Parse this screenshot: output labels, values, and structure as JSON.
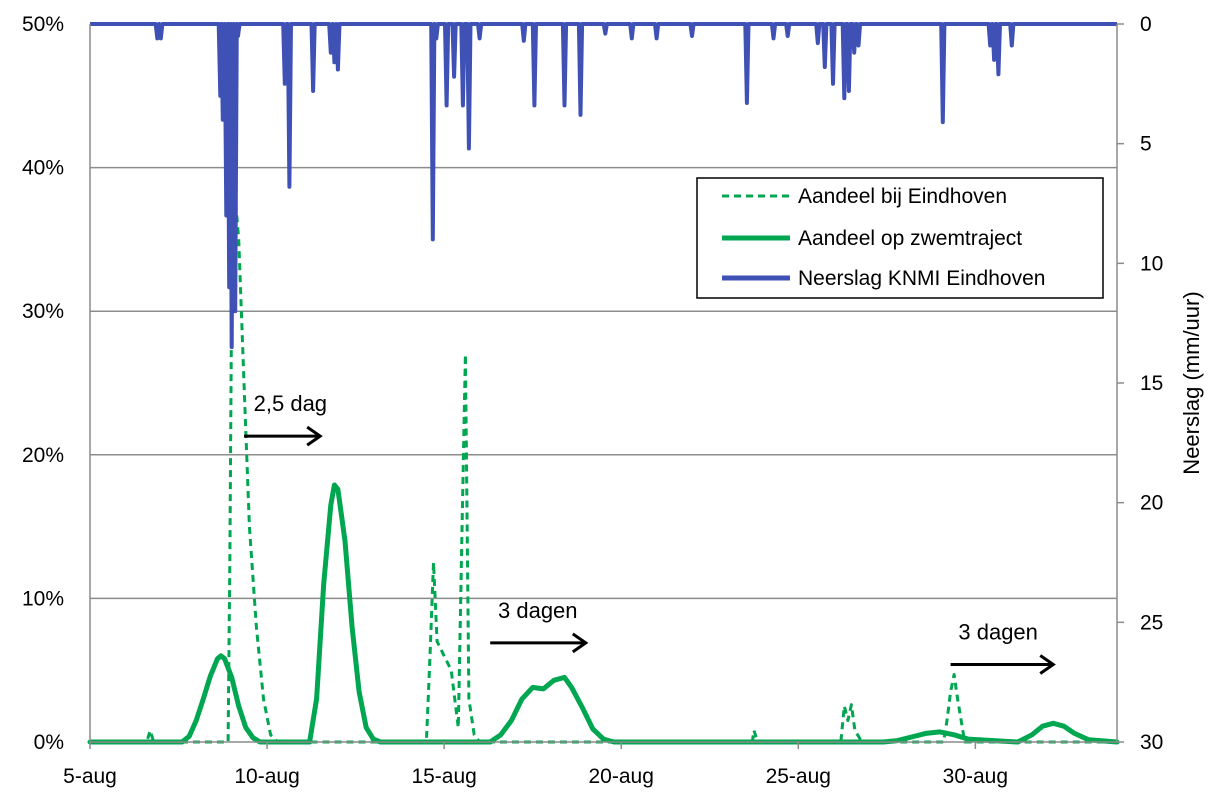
{
  "chart_data": {
    "type": "line",
    "x_axis": {
      "tick_labels": [
        "5-aug",
        "10-aug",
        "15-aug",
        "20-aug",
        "25-aug",
        "30-aug"
      ],
      "tick_days": [
        5,
        10,
        15,
        20,
        25,
        30
      ],
      "range_days": [
        5,
        34
      ]
    },
    "y_left": {
      "tick_labels": [
        "0%",
        "10%",
        "20%",
        "30%",
        "40%",
        "50%"
      ],
      "ylim": [
        0,
        50
      ],
      "gridlines": true
    },
    "y_right": {
      "label": "Neerslag (mm/uur)",
      "tick_labels": [
        "0",
        "5",
        "10",
        "15",
        "20",
        "25",
        "30"
      ],
      "ylim": [
        0,
        30
      ],
      "inverted": true
    },
    "legend": {
      "placement": "top-right",
      "entries": [
        {
          "label": "Aandeel bij Eindhoven",
          "color": "#00A650",
          "style": "dashed"
        },
        {
          "label": "Aandeel op zwemtraject",
          "color": "#00A650",
          "style": "solid"
        },
        {
          "label": "Neerslag KNMI Eindhoven",
          "color": "#3F51B5",
          "style": "solid"
        }
      ]
    },
    "series": [
      {
        "name": "Aandeel bij Eindhoven",
        "axis": "left",
        "color": "#00A650",
        "style": "dashed",
        "x": [
          5,
          6.6,
          6.7,
          6.8,
          8.9,
          8.95,
          9.0,
          9.1,
          9.2,
          9.35,
          9.5,
          9.7,
          9.9,
          10.1,
          10.3,
          14.5,
          14.6,
          14.7,
          14.8,
          15.0,
          15.2,
          15.4,
          15.5,
          15.6,
          15.7,
          15.85,
          16.0,
          16.3,
          23.7,
          23.75,
          23.85,
          26.2,
          26.3,
          26.4,
          26.5,
          26.6,
          26.8,
          29.1,
          29.2,
          29.3,
          29.4,
          29.5,
          29.7,
          34
        ],
        "y": [
          0,
          0,
          0.8,
          0,
          0,
          13,
          32,
          38,
          35,
          25,
          15,
          8,
          3,
          0.5,
          0,
          0,
          6,
          12.5,
          7,
          6,
          5,
          1,
          14,
          27,
          3,
          0.5,
          0,
          0,
          0,
          0.8,
          0,
          0,
          2.5,
          1.5,
          2.6,
          0.8,
          0,
          0,
          1.5,
          3.5,
          4.7,
          3,
          0,
          0
        ]
      },
      {
        "name": "Aandeel op zwemtraject",
        "axis": "left",
        "color": "#00A650",
        "style": "solid",
        "x": [
          5,
          7.6,
          7.8,
          8.0,
          8.2,
          8.4,
          8.6,
          8.7,
          8.8,
          9.0,
          9.2,
          9.4,
          9.6,
          9.8,
          10.0,
          11.2,
          11.4,
          11.6,
          11.8,
          11.9,
          12.0,
          12.2,
          12.4,
          12.6,
          12.8,
          13.0,
          13.2,
          16.3,
          16.6,
          16.9,
          17.2,
          17.5,
          17.8,
          18.1,
          18.4,
          18.6,
          18.9,
          19.2,
          19.5,
          19.8,
          20.2,
          27.4,
          27.8,
          28.2,
          28.6,
          29.0,
          29.4,
          29.8,
          31.2,
          31.6,
          31.9,
          32.2,
          32.5,
          32.8,
          33.2,
          34
        ],
        "y": [
          0,
          0,
          0.4,
          1.5,
          3,
          4.6,
          5.8,
          6,
          5.8,
          4.5,
          2.5,
          1,
          0.3,
          0,
          0,
          0,
          3,
          11,
          16.5,
          17.9,
          17.6,
          14,
          8,
          3.5,
          1,
          0.2,
          0,
          0,
          0.5,
          1.5,
          3,
          3.8,
          3.7,
          4.3,
          4.5,
          3.8,
          2.4,
          0.9,
          0.2,
          0,
          0,
          0,
          0.1,
          0.35,
          0.6,
          0.7,
          0.5,
          0.2,
          0,
          0.5,
          1.1,
          1.3,
          1.1,
          0.6,
          0.15,
          0
        ]
      },
      {
        "name": "Neerslag KNMI Eindhoven",
        "axis": "right",
        "color": "#3F51B5",
        "style": "solid",
        "spikes": [
          [
            6.9,
            0.6
          ],
          [
            7.0,
            0.6
          ],
          [
            8.68,
            3
          ],
          [
            8.75,
            4
          ],
          [
            8.85,
            8
          ],
          [
            8.93,
            11
          ],
          [
            9.0,
            13.5
          ],
          [
            9.1,
            12
          ],
          [
            9.18,
            0.5
          ],
          [
            10.5,
            2.5
          ],
          [
            10.63,
            6.8
          ],
          [
            11.3,
            2.8
          ],
          [
            11.8,
            1.2
          ],
          [
            11.9,
            1.6
          ],
          [
            12.0,
            1.9
          ],
          [
            14.68,
            9
          ],
          [
            14.78,
            0.6
          ],
          [
            15.07,
            3.4
          ],
          [
            15.28,
            2.2
          ],
          [
            15.53,
            3.4
          ],
          [
            15.7,
            5.2
          ],
          [
            16.0,
            0.6
          ],
          [
            17.25,
            0.7
          ],
          [
            17.55,
            3.4
          ],
          [
            18.4,
            3.4
          ],
          [
            18.85,
            3.8
          ],
          [
            19.55,
            0.4
          ],
          [
            20.3,
            0.6
          ],
          [
            21.0,
            0.6
          ],
          [
            22.0,
            0.5
          ],
          [
            23.55,
            3.3
          ],
          [
            24.3,
            0.6
          ],
          [
            24.7,
            0.5
          ],
          [
            25.55,
            0.8
          ],
          [
            25.75,
            1.8
          ],
          [
            25.98,
            2.5
          ],
          [
            26.3,
            3.1
          ],
          [
            26.43,
            2.8
          ],
          [
            26.58,
            1.2
          ],
          [
            26.7,
            0.9
          ],
          [
            29.08,
            4.1
          ],
          [
            30.42,
            0.9
          ],
          [
            30.53,
            1.5
          ],
          [
            30.65,
            2.1
          ],
          [
            31.03,
            0.9
          ]
        ]
      }
    ],
    "annotations": [
      {
        "text": "2,5 dag",
        "day": 9.0,
        "arrow_from": 9.35,
        "arrow_to": 11.5,
        "y": 21.3
      },
      {
        "text": "3 dagen",
        "day": 15.9,
        "arrow_from": 16.3,
        "arrow_to": 19.0,
        "y": 6.9
      },
      {
        "text": "3 dagen",
        "day": 28.9,
        "arrow_from": 29.3,
        "arrow_to": 32.2,
        "y": 5.4
      }
    ]
  }
}
